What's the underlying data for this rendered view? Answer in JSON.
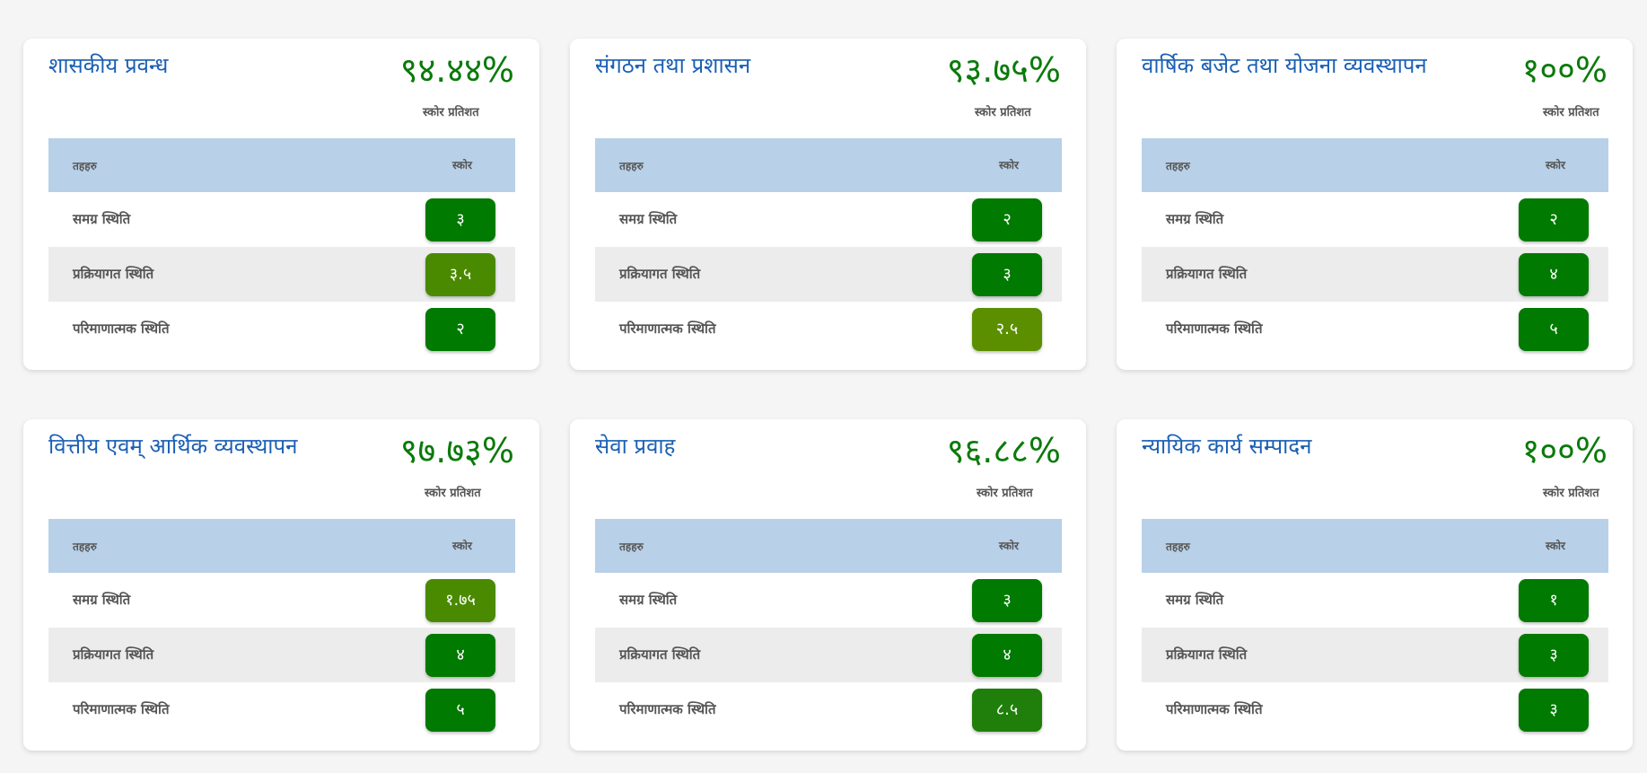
{
  "table_headers": {
    "indicator": "तहहरु",
    "score": "स्कोर"
  },
  "score_label": "स्कोर प्रतिशत",
  "colors": {
    "title": "#1a5fb4",
    "percent": "#0a7a0a",
    "header_bg": "#b8d0e8",
    "badge_dark_green": "#007a00",
    "badge_olive_green": "#4a8a00",
    "badge_light_olive": "#5c8f00",
    "badge_mid_green": "#1f7f0a"
  },
  "cards": [
    {
      "title": "शासकीय प्रवन्ध",
      "percent": "९४.४४%",
      "rows": [
        {
          "label": "समग्र स्थिति",
          "score": "३",
          "color": "#007a00"
        },
        {
          "label": "प्रक्रियागत स्थिति",
          "score": "३.५",
          "color": "#4a8a00"
        },
        {
          "label": "परिमाणात्मक स्थिति",
          "score": "२",
          "color": "#007a00"
        }
      ]
    },
    {
      "title": "संगठन तथा प्रशासन",
      "percent": "९३.७५%",
      "rows": [
        {
          "label": "समग्र स्थिति",
          "score": "२",
          "color": "#007a00"
        },
        {
          "label": "प्रक्रियागत स्थिति",
          "score": "३",
          "color": "#007a00"
        },
        {
          "label": "परिमाणात्मक स्थिति",
          "score": "२.५",
          "color": "#5c8f00"
        }
      ]
    },
    {
      "title": "वार्षिक बजेट तथा योजना व्यवस्थापन",
      "percent": "१००%",
      "rows": [
        {
          "label": "समग्र स्थिति",
          "score": "२",
          "color": "#007a00"
        },
        {
          "label": "प्रक्रियागत स्थिति",
          "score": "४",
          "color": "#007a00"
        },
        {
          "label": "परिमाणात्मक स्थिति",
          "score": "५",
          "color": "#007a00"
        }
      ]
    },
    {
      "title": "वित्तीय एवम् आर्थिक व्यवस्थापन",
      "percent": "९७.७३%",
      "rows": [
        {
          "label": "समग्र स्थिति",
          "score": "१.७५",
          "color": "#4a8a00"
        },
        {
          "label": "प्रक्रियागत स्थिति",
          "score": "४",
          "color": "#007a00"
        },
        {
          "label": "परिमाणात्मक स्थिति",
          "score": "५",
          "color": "#007a00"
        }
      ]
    },
    {
      "title": "सेवा प्रवाह",
      "percent": "९६.८८%",
      "rows": [
        {
          "label": "समग्र स्थिति",
          "score": "३",
          "color": "#007a00"
        },
        {
          "label": "प्रक्रियागत स्थिति",
          "score": "४",
          "color": "#007a00"
        },
        {
          "label": "परिमाणात्मक स्थिति",
          "score": "८.५",
          "color": "#1f7f0a"
        }
      ]
    },
    {
      "title": "न्यायिक कार्य सम्पादन",
      "percent": "१००%",
      "rows": [
        {
          "label": "समग्र स्थिति",
          "score": "१",
          "color": "#007a00"
        },
        {
          "label": "प्रक्रियागत स्थिति",
          "score": "३",
          "color": "#007a00"
        },
        {
          "label": "परिमाणात्मक स्थिति",
          "score": "३",
          "color": "#007a00"
        }
      ]
    }
  ]
}
